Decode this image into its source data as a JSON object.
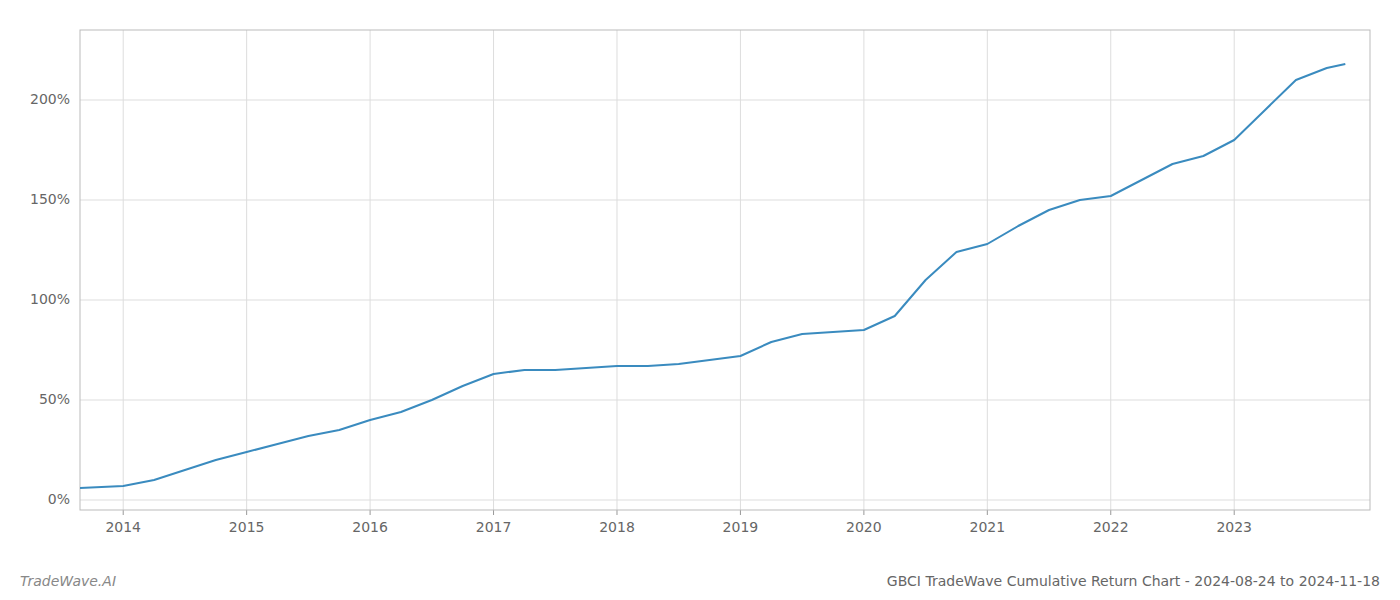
{
  "chart_data": {
    "type": "line",
    "title": "GBCI TradeWave Cumulative Return Chart - 2024-08-24 to 2024-11-18",
    "annotations": [
      "TradeWave.AI"
    ],
    "color": "#3a8bbf",
    "x": [
      2013.65,
      2014.0,
      2014.25,
      2014.5,
      2014.75,
      2015.0,
      2015.25,
      2015.5,
      2015.75,
      2016.0,
      2016.25,
      2016.5,
      2016.75,
      2017.0,
      2017.25,
      2017.5,
      2017.75,
      2018.0,
      2018.25,
      2018.5,
      2018.75,
      2019.0,
      2019.25,
      2019.5,
      2019.75,
      2020.0,
      2020.25,
      2020.5,
      2020.75,
      2021.0,
      2021.25,
      2021.5,
      2021.75,
      2022.0,
      2022.25,
      2022.5,
      2022.75,
      2023.0,
      2023.25,
      2023.5,
      2023.75,
      2023.9
    ],
    "values": [
      0.06,
      0.07,
      0.1,
      0.15,
      0.2,
      0.24,
      0.28,
      0.32,
      0.35,
      0.4,
      0.44,
      0.5,
      0.57,
      0.63,
      0.65,
      0.65,
      0.66,
      0.67,
      0.67,
      0.68,
      0.7,
      0.72,
      0.79,
      0.83,
      0.84,
      0.85,
      0.92,
      1.1,
      1.24,
      1.28,
      1.37,
      1.45,
      1.5,
      1.52,
      1.6,
      1.68,
      1.72,
      1.8,
      1.95,
      2.1,
      2.16,
      2.18
    ],
    "xlim": [
      2013.65,
      2024.1
    ],
    "ylim": [
      -0.05,
      2.35
    ],
    "xticks": [
      2014,
      2015,
      2016,
      2017,
      2018,
      2019,
      2020,
      2021,
      2022,
      2023
    ],
    "yticks": [
      {
        "value": 0.0,
        "label": "0%"
      },
      {
        "value": 0.5,
        "label": "50%"
      },
      {
        "value": 1.0,
        "label": "100%"
      },
      {
        "value": 1.5,
        "label": "150%"
      },
      {
        "value": 2.0,
        "label": "200%"
      }
    ],
    "grid": true
  }
}
